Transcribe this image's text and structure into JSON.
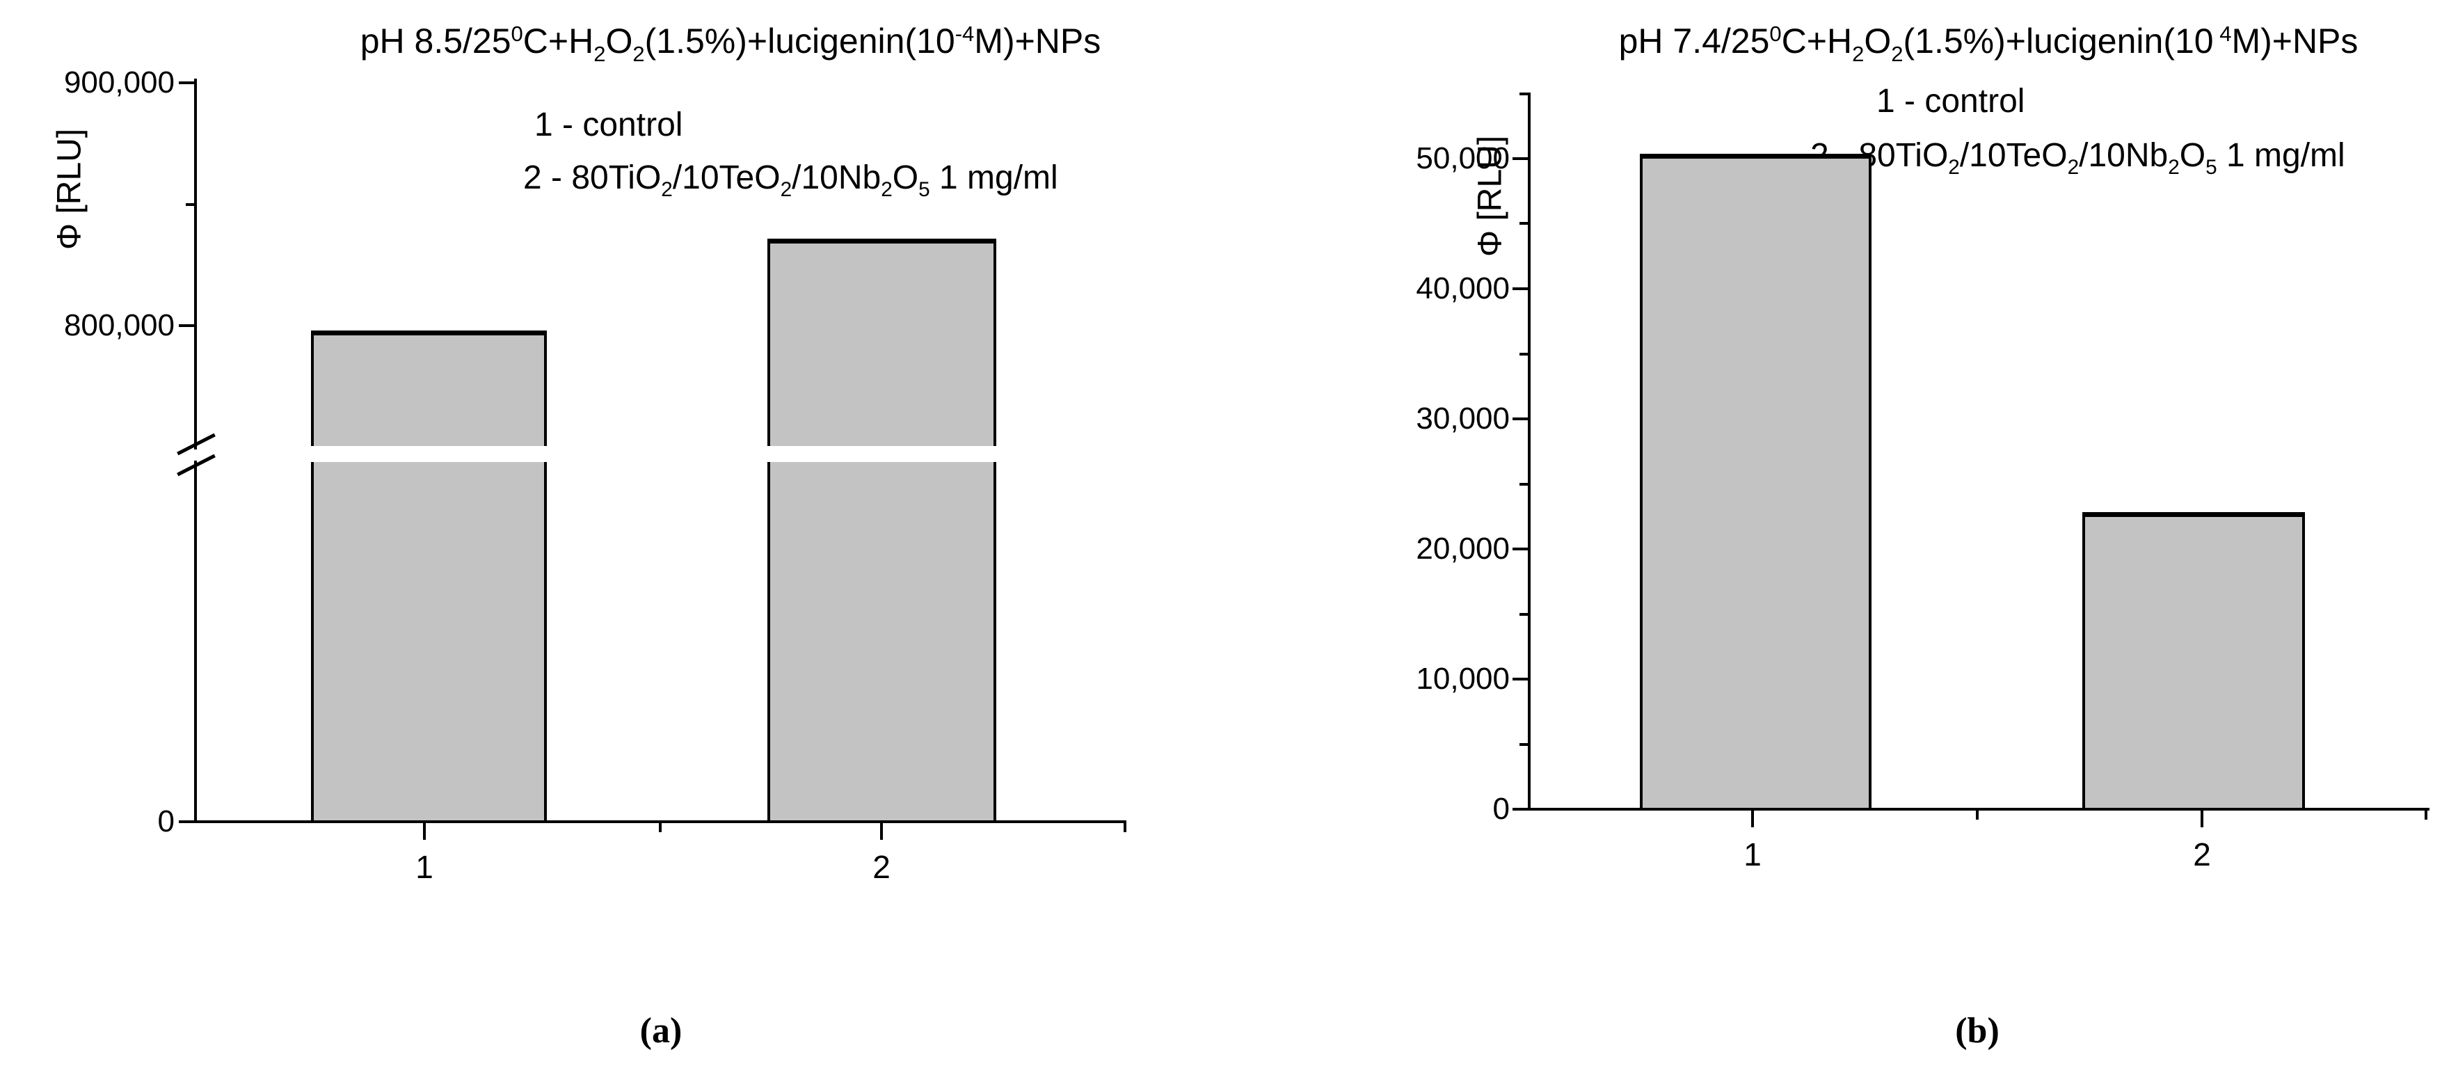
{
  "figure": {
    "captions": {
      "a": "(a)",
      "b": "(b)"
    }
  },
  "chart_data": [
    {
      "id": "a",
      "type": "bar",
      "title_runs": [
        {
          "t": "pH 8.5/25"
        },
        {
          "t": "0",
          "sup": true
        },
        {
          "t": "C+H"
        },
        {
          "t": "2",
          "sub": true
        },
        {
          "t": "O"
        },
        {
          "t": "2",
          "sub": true
        },
        {
          "t": "(1.5%)+lucigenin(10"
        },
        {
          "t": "-4",
          "sup": true
        },
        {
          "t": "M)+NPs"
        }
      ],
      "ylabel_runs": [
        {
          "t": "Φ [RLU]"
        }
      ],
      "legend_lines": [
        [
          {
            "t": "1 - control"
          }
        ],
        [
          {
            "t": "2 - 80TiO"
          },
          {
            "t": "2",
            "sub": true
          },
          {
            "t": "/10TeO"
          },
          {
            "t": "2",
            "sub": true
          },
          {
            "t": "/10Nb"
          },
          {
            "t": "2",
            "sub": true
          },
          {
            "t": "O"
          },
          {
            "t": "5",
            "sub": true
          },
          {
            "t": " 1 mg/ml"
          }
        ]
      ],
      "categories": [
        "1",
        "2"
      ],
      "values": [
        797000,
        835000
      ],
      "ylim": [
        0,
        905000
      ],
      "axis_break": {
        "between": [
          0,
          780000
        ]
      },
      "grid": false,
      "y_ticks": [
        {
          "v": 900000,
          "label": "900,000",
          "major": true
        },
        {
          "v": 850000,
          "label": "",
          "major": false
        },
        {
          "v": 800000,
          "label": "800,000",
          "major": true
        },
        {
          "v": 0,
          "label": "0",
          "major": true
        }
      ],
      "x_tick_labels": [
        "1",
        "",
        "2",
        ""
      ]
    },
    {
      "id": "b",
      "type": "bar",
      "title_runs": [
        {
          "t": "pH 7.4/25"
        },
        {
          "t": "0",
          "sup": true
        },
        {
          "t": "C+H"
        },
        {
          "t": "2",
          "sub": true
        },
        {
          "t": "O"
        },
        {
          "t": "2",
          "sub": true
        },
        {
          "t": "(1.5%)+lucigenin(10"
        },
        {
          "t": " 4",
          "sup": true
        },
        {
          "t": "M)+NPs"
        }
      ],
      "ylabel_runs": [
        {
          "t": "Φ [RLU]"
        }
      ],
      "legend_lines": [
        [
          {
            "t": "1 - control"
          }
        ],
        [
          {
            "t": "2 - 80TiO"
          },
          {
            "t": "2",
            "sub": true
          },
          {
            "t": "/10TeO"
          },
          {
            "t": "2",
            "sub": true
          },
          {
            "t": "/10Nb"
          },
          {
            "t": "2",
            "sub": true
          },
          {
            "t": "O"
          },
          {
            "t": "5",
            "sub": true
          },
          {
            "t": " 1 mg/ml"
          }
        ]
      ],
      "categories": [
        "1",
        "2"
      ],
      "values": [
        50200,
        22700
      ],
      "ylim": [
        0,
        55000
      ],
      "grid": false,
      "y_ticks": [
        {
          "v": 55000,
          "label": "",
          "major": false
        },
        {
          "v": 50000,
          "label": "50,000",
          "major": true
        },
        {
          "v": 45000,
          "label": "",
          "major": false
        },
        {
          "v": 40000,
          "label": "40,000",
          "major": true
        },
        {
          "v": 35000,
          "label": "",
          "major": false
        },
        {
          "v": 30000,
          "label": "30,000",
          "major": true
        },
        {
          "v": 25000,
          "label": "",
          "major": false
        },
        {
          "v": 20000,
          "label": "20,000",
          "major": true
        },
        {
          "v": 15000,
          "label": "",
          "major": false
        },
        {
          "v": 10000,
          "label": "10,000",
          "major": true
        },
        {
          "v": 5000,
          "label": "",
          "major": false
        },
        {
          "v": 0,
          "label": "0",
          "major": true
        }
      ],
      "x_tick_labels": [
        "1",
        "",
        "2",
        ""
      ]
    }
  ]
}
